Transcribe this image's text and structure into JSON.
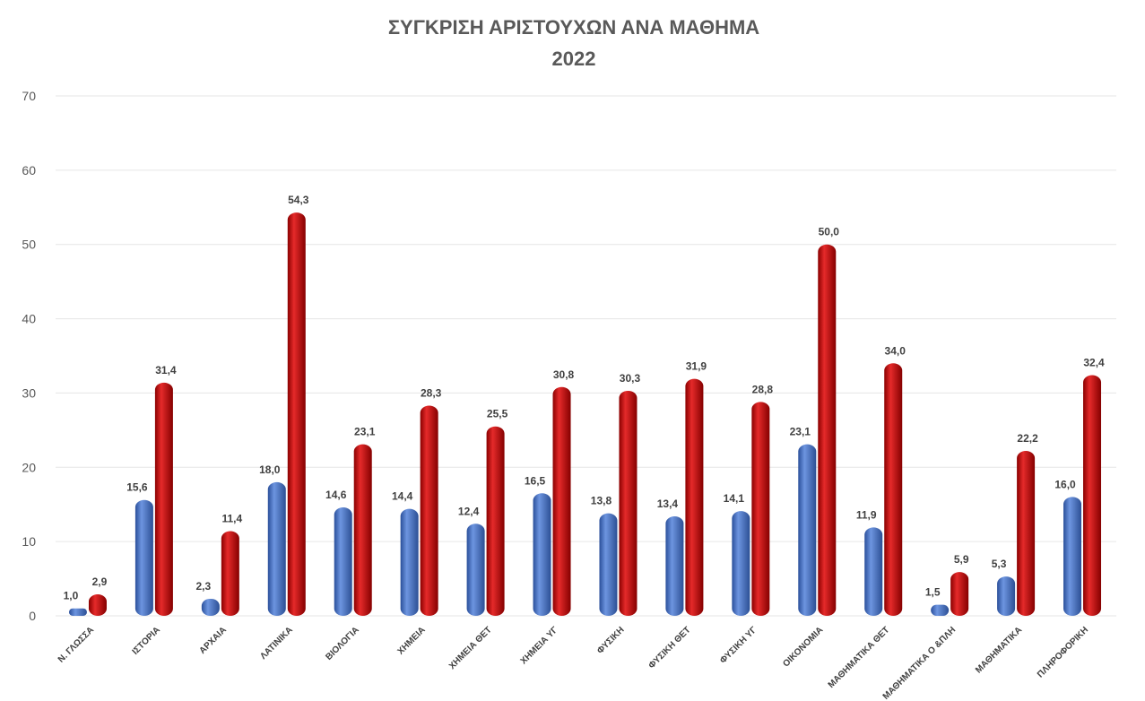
{
  "chart_data": {
    "type": "bar",
    "title": "ΣΥΓΚΡΙΣΗ ΑΡΙΣΤΟΥΧΩΝ ΑΝΑ ΜΑΘΗΜΑ",
    "subtitle": "2022",
    "xlabel": "",
    "ylabel": "",
    "ylim": [
      0,
      70
    ],
    "yticks": [
      0,
      10,
      20,
      30,
      40,
      50,
      60,
      70
    ],
    "grid": true,
    "legend": "none",
    "categories": [
      "Ν. ΓΛΩΣΣΑ",
      "ΙΣΤΟΡΙΑ",
      "ΑΡΧΑΙΑ",
      "ΛΑΤΙΝΙΚΑ",
      "ΒΙΟΛΟΓΙΑ",
      "ΧΗΜΕΙΑ",
      "ΧΗΜΕΙΑ ΘΕΤ",
      "ΧΗΜΕΙΑ ΥΓ",
      "ΦΥΣΙΚΗ",
      "ΦΥΣΙΚΗ ΘΕΤ",
      "ΦΥΣΙΚΗ ΥΓ",
      "ΟΙΚΟΝΟΜΙΑ",
      "ΜΑΘΗΜΑΤΙΚΑ ΘΕΤ",
      "ΜΑΘΗΜΑΤΙΚΑ Ο &ΠΛΗ",
      "ΜΑΘΗΜΑΤΙΚΑ",
      "ΠΛΗΡΟΦΟΡΙΚΗ"
    ],
    "series": [
      {
        "name": "blue",
        "color": "#4472C4",
        "values": [
          1.0,
          15.6,
          2.3,
          18.0,
          14.6,
          14.4,
          12.4,
          16.5,
          13.8,
          13.4,
          14.1,
          23.1,
          11.9,
          1.5,
          5.3,
          16.0
        ]
      },
      {
        "name": "red",
        "color": "#C00000",
        "values": [
          2.9,
          31.4,
          11.4,
          54.3,
          23.1,
          28.3,
          25.5,
          30.8,
          30.3,
          31.9,
          28.8,
          50.0,
          34.0,
          5.9,
          22.2,
          32.4
        ]
      }
    ]
  }
}
